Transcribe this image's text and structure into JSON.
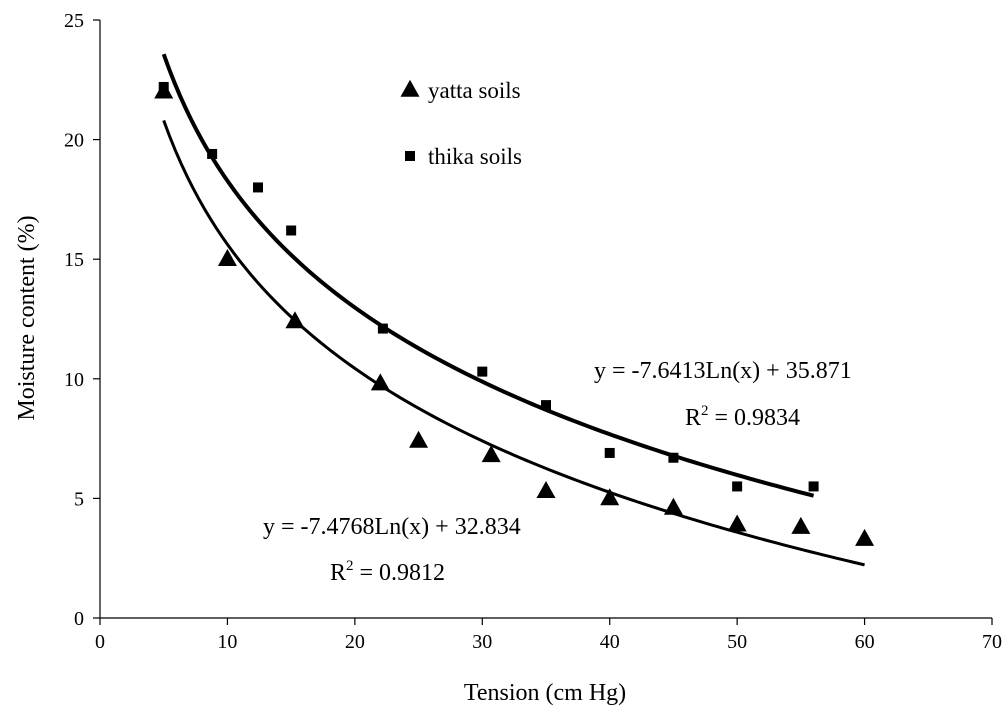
{
  "chart_data": {
    "type": "scatter",
    "title": "",
    "xlabel": "Tension (cm Hg)",
    "ylabel": "Moisture content (%)",
    "xlim": [
      0,
      70
    ],
    "ylim": [
      0,
      25
    ],
    "x_ticks": [
      0,
      10,
      20,
      30,
      40,
      50,
      60,
      70
    ],
    "y_ticks": [
      0,
      5,
      10,
      15,
      20,
      25
    ],
    "grid": false,
    "legend_position": "top-center",
    "series": [
      {
        "name": "yatta soils",
        "marker": "triangle",
        "color": "#000000",
        "x": [
          5,
          10,
          15.3,
          22,
          25,
          30.7,
          35,
          40,
          45,
          50,
          55,
          60
        ],
        "y": [
          22.0,
          15.0,
          12.4,
          9.8,
          7.4,
          6.8,
          5.3,
          5.0,
          4.6,
          3.9,
          3.8,
          3.3
        ],
        "trendline": {
          "type": "logarithmic",
          "a": -7.4768,
          "b": 32.834,
          "x_range": [
            5,
            60
          ],
          "equation": "y = -7.4768Ln(x) + 32.834",
          "r2_prefix": "R",
          "r2_sup": "2",
          "r2_value": " = 0.9812"
        }
      },
      {
        "name": "thika soils",
        "marker": "square",
        "color": "#000000",
        "x": [
          5,
          8.8,
          12.4,
          15,
          22.2,
          30,
          35,
          40,
          45,
          50,
          56
        ],
        "y": [
          22.2,
          19.4,
          18.0,
          16.2,
          12.1,
          10.3,
          8.9,
          6.9,
          6.7,
          5.5,
          5.5
        ],
        "trendline": {
          "type": "logarithmic",
          "a": -7.6413,
          "b": 35.871,
          "x_range": [
            5,
            56
          ],
          "equation": "y = -7.6413Ln(x) + 35.871",
          "r2_prefix": "R",
          "r2_sup": "2",
          "r2_value": " = 0.9834"
        }
      }
    ]
  }
}
